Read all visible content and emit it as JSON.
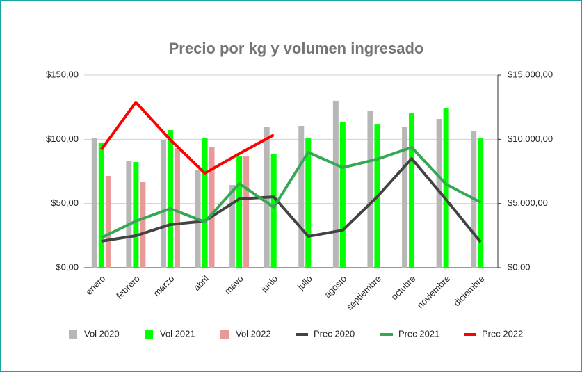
{
  "chart_data": {
    "type": "bar_line",
    "title": "Precio por kg y volumen ingresado",
    "categories": [
      "enero",
      "febrero",
      "marzo",
      "abril",
      "mayo",
      "junio",
      "julio",
      "agosto",
      "septiembre",
      "octubre",
      "noviembre",
      "diciembre"
    ],
    "series": [
      {
        "name": "Vol 2020",
        "color": "#b7b7b7",
        "kind": "bar",
        "axis": "y2",
        "values": [
          10070,
          8285,
          9910,
          7580,
          6440,
          10990,
          11050,
          13000,
          12240,
          10940,
          11590,
          10670
        ]
      },
      {
        "name": "Vol 2021",
        "color": "#00ff00",
        "kind": "bar",
        "axis": "y2",
        "values": [
          9750,
          8230,
          10720,
          10070,
          8660,
          8830,
          10070,
          11320,
          11150,
          12020,
          12400,
          10070
        ]
      },
      {
        "name": "Vol 2022",
        "color": "#ea9999",
        "kind": "bar",
        "axis": "y2",
        "values": [
          7150,
          6660,
          9310,
          9420,
          8720,
          null,
          null,
          null,
          null,
          null,
          null,
          null
        ]
      },
      {
        "name": "Prec 2020",
        "color": "#434343",
        "kind": "line",
        "values": [
          20.6,
          24.9,
          33.6,
          36.3,
          53.6,
          55.2,
          24.4,
          29.2,
          55.2,
          85,
          53,
          20
        ]
      },
      {
        "name": "Prec 2021",
        "color": "#34a853",
        "kind": "line",
        "values": [
          23.3,
          36.3,
          46,
          35.7,
          65.5,
          47.1,
          89.9,
          78,
          84.5,
          93.7,
          65,
          50.9
        ]
      },
      {
        "name": "Prec 2022",
        "color": "#ff0000",
        "kind": "line",
        "values": [
          92,
          128.9,
          99.6,
          73.6,
          88.8,
          103.4,
          null,
          null,
          null,
          null,
          null,
          null
        ]
      }
    ],
    "ylim": [
      0,
      150
    ],
    "yticks": [
      {
        "value": 0,
        "label": "$0,00"
      },
      {
        "value": 50,
        "label": "$50,00"
      },
      {
        "value": 100,
        "label": "$100,00"
      },
      {
        "value": 150,
        "label": "$150,00"
      }
    ],
    "y2lim": [
      0,
      15000
    ],
    "y2ticks": [
      {
        "value": 0,
        "label": "$0,00"
      },
      {
        "value": 5000,
        "label": "$5.000,00"
      },
      {
        "value": 10000,
        "label": "$10.000,00"
      },
      {
        "value": 15000,
        "label": "$15.000,00"
      }
    ],
    "grid": true,
    "legend": "bottom"
  }
}
